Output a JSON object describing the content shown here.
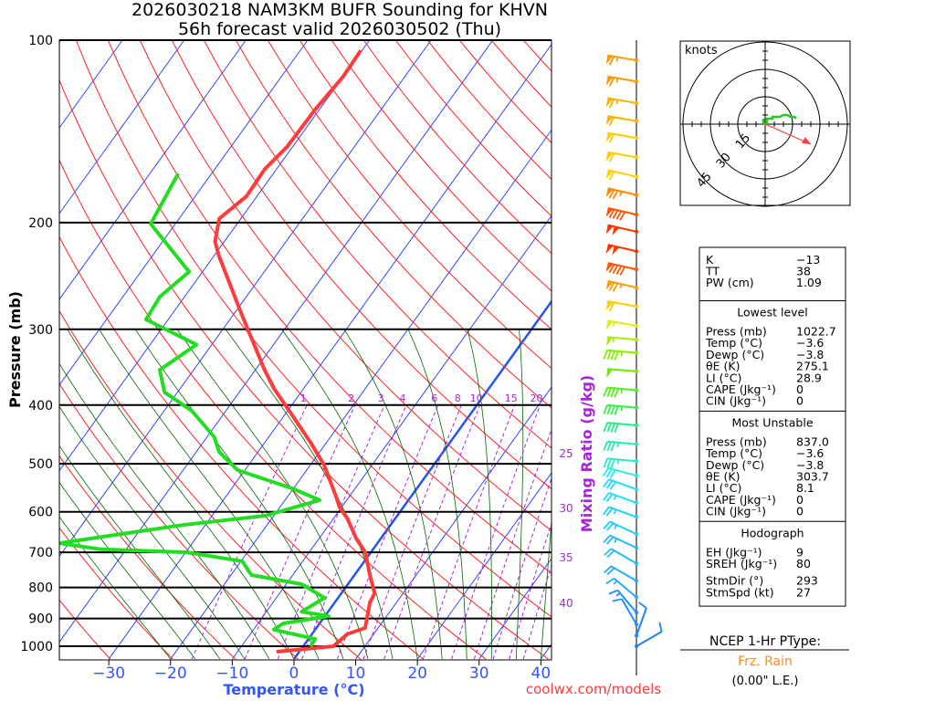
{
  "title_line1": "2026030218 NAM3KM BUFR Sounding for KHVN",
  "title_line2": "56h forecast valid 2026030502 (Thu)",
  "footer": "coolwx.com/models",
  "chart_data": {
    "type": "line",
    "subtype": "skew-t log-p",
    "xlabel": "Temperature (°C)",
    "ylabel": "Pressure (mb)",
    "y2label": "Mixing Ratio (g/kg)",
    "xlim": [
      -40,
      42
    ],
    "ylim": [
      1050,
      100
    ],
    "x_ticks": [
      -30,
      -20,
      -10,
      0,
      10,
      20,
      30,
      40
    ],
    "x_tick_labels": [
      "−30",
      "−20",
      "−10",
      "0",
      "10",
      "20",
      "30",
      "40"
    ],
    "y_ticks": [
      100,
      200,
      300,
      400,
      500,
      600,
      700,
      800,
      900,
      1000
    ],
    "y_tick_labels": [
      "100",
      "200",
      "300",
      "400",
      "500",
      "600",
      "700",
      "800",
      "900",
      "1000"
    ],
    "mixing_ratio_lines": [
      1,
      2,
      3,
      4,
      6,
      8,
      10,
      15,
      20,
      25,
      30,
      35,
      40
    ],
    "mixing_ratio_labels": [
      "1",
      "2",
      "3",
      "4",
      "6",
      "8",
      "10",
      "15",
      "20",
      "25",
      "30",
      "35",
      "40"
    ],
    "series": [
      {
        "name": "Temperature",
        "color": "#ff3b3b",
        "points": [
          [
            1021,
            -3.7
          ],
          [
            1000,
            4.9
          ],
          [
            955,
            5.7
          ],
          [
            933,
            7.9
          ],
          [
            847,
            5.7
          ],
          [
            818,
            5.4
          ],
          [
            763,
            2.5
          ],
          [
            700,
            -0.9
          ],
          [
            664,
            -4.0
          ],
          [
            615,
            -7.8
          ],
          [
            589,
            -10.4
          ],
          [
            568,
            -12.0
          ],
          [
            503,
            -17.7
          ],
          [
            461,
            -22.6
          ],
          [
            416,
            -28.7
          ],
          [
            375,
            -34.9
          ],
          [
            350,
            -38.5
          ],
          [
            284,
            -48.6
          ],
          [
            227,
            -59.2
          ],
          [
            215,
            -61.5
          ],
          [
            197,
            -63.5
          ],
          [
            181,
            -61.7
          ],
          [
            163,
            -61.9
          ],
          [
            150,
            -60.9
          ],
          [
            130,
            -60.7
          ],
          [
            115,
            -60.0
          ],
          [
            104,
            -60.2
          ]
        ]
      },
      {
        "name": "Dewpoint",
        "color": "#22dd22",
        "points": [
          [
            1000,
            1.2
          ],
          [
            973,
            1.1
          ],
          [
            939,
            -6.7
          ],
          [
            917,
            -5.9
          ],
          [
            892,
            0.6
          ],
          [
            877,
            -4.3
          ],
          [
            832,
            -2.2
          ],
          [
            790,
            -7.5
          ],
          [
            763,
            -16.7
          ],
          [
            724,
            -19.8
          ],
          [
            700,
            -29.8
          ],
          [
            692,
            -44.1
          ],
          [
            676,
            -51.5
          ],
          [
            664,
            -46.9
          ],
          [
            631,
            -33.7
          ],
          [
            609,
            -21.4
          ],
          [
            574,
            -14.4
          ],
          [
            549,
            -20.2
          ],
          [
            512,
            -31.2
          ],
          [
            478,
            -36.3
          ],
          [
            451,
            -38.9
          ],
          [
            409,
            -45.5
          ],
          [
            381,
            -52.1
          ],
          [
            350,
            -55.5
          ],
          [
            318,
            -52.5
          ],
          [
            289,
            -63.6
          ],
          [
            265,
            -64.0
          ],
          [
            241,
            -62.2
          ],
          [
            201,
            -74.0
          ],
          [
            166,
            -75.4
          ]
        ]
      }
    ],
    "wind_barbs": [
      {
        "p": 108,
        "dir": 280,
        "spd": 65,
        "color": "#ff9900"
      },
      {
        "p": 117,
        "dir": 280,
        "spd": 65,
        "color": "#ff9900"
      },
      {
        "p": 127,
        "dir": 280,
        "spd": 65,
        "color": "#ffb000"
      },
      {
        "p": 136,
        "dir": 280,
        "spd": 60,
        "color": "#ffb000"
      },
      {
        "p": 145,
        "dir": 280,
        "spd": 60,
        "color": "#ffcc00"
      },
      {
        "p": 156,
        "dir": 280,
        "spd": 60,
        "color": "#ffcc00"
      },
      {
        "p": 168,
        "dir": 283,
        "spd": 60,
        "color": "#ffd000"
      },
      {
        "p": 180,
        "dir": 283,
        "spd": 75,
        "color": "#ff8800"
      },
      {
        "p": 194,
        "dir": 283,
        "spd": 90,
        "color": "#ff5500"
      },
      {
        "p": 207,
        "dir": 283,
        "spd": 100,
        "color": "#ff3300"
      },
      {
        "p": 223,
        "dir": 283,
        "spd": 100,
        "color": "#ff3300"
      },
      {
        "p": 239,
        "dir": 283,
        "spd": 90,
        "color": "#ff5500"
      },
      {
        "p": 256,
        "dir": 283,
        "spd": 75,
        "color": "#ff9900"
      },
      {
        "p": 275,
        "dir": 280,
        "spd": 60,
        "color": "#ffcc00"
      },
      {
        "p": 296,
        "dir": 280,
        "spd": 55,
        "color": "#ddee00"
      },
      {
        "p": 312,
        "dir": 275,
        "spd": 55,
        "color": "#aaee00"
      },
      {
        "p": 328,
        "dir": 275,
        "spd": 45,
        "color": "#88ee00"
      },
      {
        "p": 352,
        "dir": 275,
        "spd": 50,
        "color": "#66ee00"
      },
      {
        "p": 378,
        "dir": 275,
        "spd": 45,
        "color": "#55ee22"
      },
      {
        "p": 404,
        "dir": 275,
        "spd": 45,
        "color": "#33ee44"
      },
      {
        "p": 432,
        "dir": 275,
        "spd": 40,
        "color": "#22ee88"
      },
      {
        "p": 464,
        "dir": 275,
        "spd": 35,
        "color": "#22eeaa"
      },
      {
        "p": 495,
        "dir": 275,
        "spd": 35,
        "color": "#22eecc"
      },
      {
        "p": 523,
        "dir": 285,
        "spd": 30,
        "color": "#22eeee"
      },
      {
        "p": 551,
        "dir": 290,
        "spd": 30,
        "color": "#22ddff"
      },
      {
        "p": 580,
        "dir": 290,
        "spd": 25,
        "color": "#22ddff"
      },
      {
        "p": 612,
        "dir": 290,
        "spd": 25,
        "color": "#22ccff"
      },
      {
        "p": 653,
        "dir": 295,
        "spd": 25,
        "color": "#22ccff"
      },
      {
        "p": 688,
        "dir": 295,
        "spd": 25,
        "color": "#22bbff"
      },
      {
        "p": 730,
        "dir": 300,
        "spd": 20,
        "color": "#22bbff"
      },
      {
        "p": 780,
        "dir": 300,
        "spd": 20,
        "color": "#22aaff"
      },
      {
        "p": 830,
        "dir": 310,
        "spd": 15,
        "color": "#22aaff"
      },
      {
        "p": 880,
        "dir": 320,
        "spd": 15,
        "color": "#1e90ff"
      },
      {
        "p": 920,
        "dir": 330,
        "spd": 10,
        "color": "#1e90ff"
      },
      {
        "p": 960,
        "dir": 20,
        "spd": 10,
        "color": "#1e80ff"
      },
      {
        "p": 1000,
        "dir": 60,
        "spd": 10,
        "color": "#1e80ff"
      }
    ]
  },
  "hodograph": {
    "units_label": "knots",
    "rings": [
      15,
      30,
      45
    ],
    "ring_labels": [
      "15",
      "30",
      "45"
    ],
    "trace_uv": [
      [
        -1,
        3
      ],
      [
        -1,
        1
      ],
      [
        0,
        0
      ],
      [
        1,
        0
      ],
      [
        1,
        1
      ],
      [
        1,
        3
      ],
      [
        4,
        3
      ],
      [
        4,
        4
      ],
      [
        6,
        4
      ],
      [
        8,
        4
      ],
      [
        10,
        5
      ],
      [
        12,
        5
      ],
      [
        14,
        4
      ],
      [
        16,
        4
      ],
      [
        17,
        3
      ]
    ],
    "storm_motion_uv": [
      25,
      -11
    ]
  },
  "stats": {
    "top": [
      {
        "label": "K",
        "value": "−13"
      },
      {
        "label": "TT",
        "value": "38"
      },
      {
        "label": "PW (cm)",
        "value": "1.09"
      }
    ],
    "sections": [
      {
        "title": "Lowest level",
        "rows": [
          {
            "label": "Press (mb)",
            "value": "1022.7"
          },
          {
            "label": "Temp (°C)",
            "value": "−3.6"
          },
          {
            "label": "Dewp (°C)",
            "value": "−3.8"
          },
          {
            "label": "θE (K)",
            "value": "275.1"
          },
          {
            "label": "LI (°C)",
            "value": "28.9"
          },
          {
            "label": "CAPE (Jkg⁻¹)",
            "value": "0"
          },
          {
            "label": "CIN (Jkg⁻¹)",
            "value": "0"
          }
        ]
      },
      {
        "title": "Most Unstable",
        "rows": [
          {
            "label": "Press (mb)",
            "value": "837.0"
          },
          {
            "label": "Temp (°C)",
            "value": "−3.6"
          },
          {
            "label": "Dewp (°C)",
            "value": "−3.8"
          },
          {
            "label": "θE (K)",
            "value": "303.7"
          },
          {
            "label": "LI (°C)",
            "value": "8.1"
          },
          {
            "label": "CAPE (Jkg⁻¹)",
            "value": "0"
          },
          {
            "label": "CIN (Jkg⁻¹)",
            "value": "0"
          }
        ]
      },
      {
        "title": "Hodograph",
        "rows": [
          {
            "label": "EH (Jkg⁻¹)",
            "value": "9"
          },
          {
            "label": "SREH (Jkg⁻¹)",
            "value": "80"
          },
          {
            "label": "StmDir (°)",
            "value": "293"
          },
          {
            "label": "StmSpd (kt)",
            "value": "27"
          }
        ]
      }
    ]
  },
  "ptype": {
    "heading": "NCEP 1-Hr PType:",
    "value": "Frz. Rain",
    "value_color": "#ff8c1a",
    "amount": "(0.00\" L.E.)"
  },
  "colors": {
    "isotherm": "#3344ff",
    "dry_adiabat": "#ff2020",
    "moist_adiabat": "#006600",
    "mixing_ratio": "#aa22dd",
    "zero_isotherm": "#2255ee"
  }
}
